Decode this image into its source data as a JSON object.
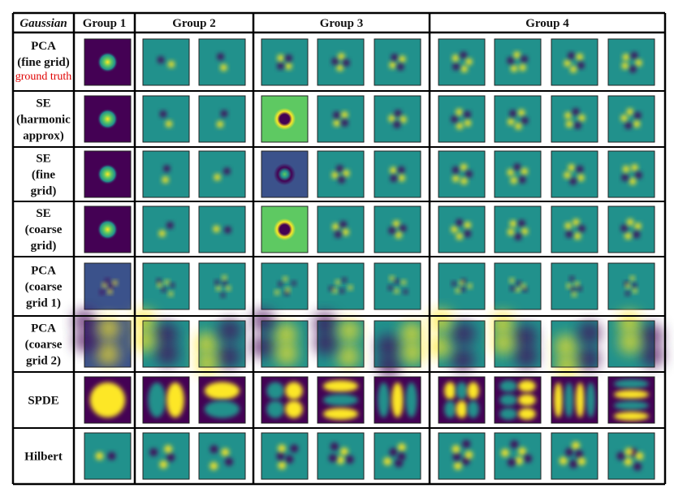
{
  "header": {
    "corner": "Gaussian",
    "groups": [
      "Group 1",
      "Group 2",
      "Group 3",
      "Group 4"
    ]
  },
  "rows": [
    {
      "label": [
        "PCA",
        "(fine grid)"
      ],
      "note": "ground truth"
    },
    {
      "label": [
        "SE",
        "(harmonic",
        "approx)"
      ]
    },
    {
      "label": [
        "SE",
        "(fine",
        "grid)"
      ]
    },
    {
      "label": [
        "SE",
        "(coarse",
        "grid)"
      ]
    },
    {
      "label": [
        "PCA",
        "(coarse",
        "grid 1)"
      ]
    },
    {
      "label": [
        "PCA",
        "(coarse",
        "grid 2)"
      ]
    },
    {
      "label": [
        "SPDE"
      ]
    },
    {
      "label": [
        "Hilbert"
      ]
    }
  ],
  "colors": {
    "viridis_dark": "#440154",
    "viridis_blue": "#3b528b",
    "viridis_teal": "#21918c",
    "viridis_green": "#5ec962",
    "viridis_yellow": "#fde725",
    "note_color": "#e00000"
  }
}
